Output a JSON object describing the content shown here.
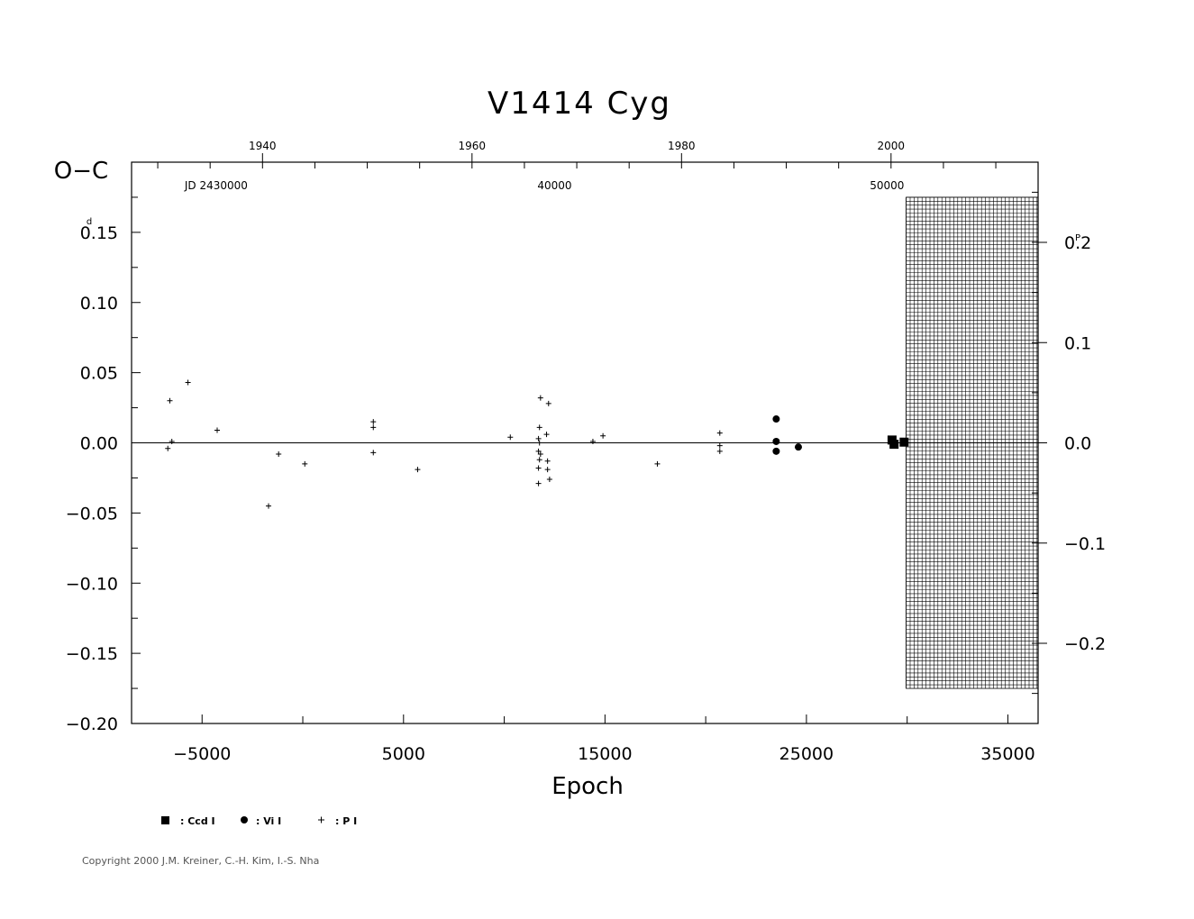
{
  "chart_data": {
    "type": "scatter",
    "title": "V1414  Cyg",
    "xlabel": "Epoch",
    "ylabel": "O−C",
    "y_unit_label": "d",
    "right_axis_unit_label": "P",
    "xlim": [
      -8500,
      36500
    ],
    "ylim": [
      -0.2,
      0.2
    ],
    "right_axis_ratio": 1.4,
    "x_ticks": [
      -5000,
      5000,
      15000,
      25000,
      35000
    ],
    "x_tick_labels": [
      "−5000",
      "5000",
      "15000",
      "25000",
      "35000"
    ],
    "y_ticks": [
      0.15,
      0.1,
      0.05,
      0.0,
      -0.05,
      -0.1,
      -0.15,
      -0.2
    ],
    "y_tick_labels": [
      "0.15",
      "0.10",
      "0.05",
      "0.00",
      "−0.05",
      "−0.10",
      "−0.15",
      "−0.20"
    ],
    "right_ticks": [
      0.2,
      0.1,
      0.0,
      -0.1,
      -0.2
    ],
    "right_tick_labels": [
      "0.2",
      "0.1",
      "0.0",
      "−0.1",
      "−0.2"
    ],
    "top_year_ticks": [
      {
        "epoch": -2000,
        "label": "1940"
      },
      {
        "epoch": 8400,
        "label": "1960"
      },
      {
        "epoch": 18800,
        "label": "1980"
      },
      {
        "epoch": 29200,
        "label": "2000"
      }
    ],
    "top_jd_labels": [
      {
        "epoch": -4300,
        "label": "JD 2430000"
      },
      {
        "epoch": 12500,
        "label": "40000"
      },
      {
        "epoch": 29000,
        "label": "50000"
      }
    ],
    "grid_region": {
      "x": [
        29950,
        36500
      ],
      "y": [
        -0.175,
        0.175
      ]
    },
    "zero_line": true,
    "series": [
      {
        "name": ": Ccd I",
        "marker": "square",
        "points": [
          [
            29250,
            0.002
          ],
          [
            29350,
            -0.001
          ],
          [
            29850,
            0.0005
          ]
        ]
      },
      {
        "name": ": Vi I",
        "marker": "circle",
        "points": [
          [
            23500,
            0.017
          ],
          [
            23500,
            0.001
          ],
          [
            23500,
            -0.006
          ],
          [
            24600,
            -0.003
          ]
        ]
      },
      {
        "name": ": P I",
        "marker": "plus",
        "points": [
          [
            -6700,
            -0.004
          ],
          [
            -6600,
            0.03
          ],
          [
            -6500,
            0.001
          ],
          [
            -5700,
            0.043
          ],
          [
            -4250,
            0.009
          ],
          [
            -1700,
            -0.045
          ],
          [
            -1200,
            -0.008
          ],
          [
            100,
            -0.015
          ],
          [
            3500,
            0.015
          ],
          [
            3500,
            0.011
          ],
          [
            3500,
            -0.007
          ],
          [
            5700,
            -0.019
          ],
          [
            10300,
            0.004
          ],
          [
            11800,
            0.032
          ],
          [
            11750,
            0.011
          ],
          [
            11700,
            0.003
          ],
          [
            11750,
            0.0
          ],
          [
            11700,
            -0.006
          ],
          [
            11800,
            -0.008
          ],
          [
            11750,
            -0.012
          ],
          [
            11700,
            -0.018
          ],
          [
            11700,
            -0.029
          ],
          [
            12200,
            0.028
          ],
          [
            12100,
            0.006
          ],
          [
            12150,
            -0.013
          ],
          [
            12150,
            -0.019
          ],
          [
            12250,
            -0.026
          ],
          [
            14400,
            0.001
          ],
          [
            14900,
            0.005
          ],
          [
            17600,
            -0.015
          ],
          [
            20700,
            0.007
          ],
          [
            20700,
            -0.002
          ],
          [
            20700,
            -0.006
          ]
        ]
      }
    ]
  },
  "copyright": "Copyright 2000 J.M. Kreiner, C.-H. Kim, I.-S. Nha"
}
